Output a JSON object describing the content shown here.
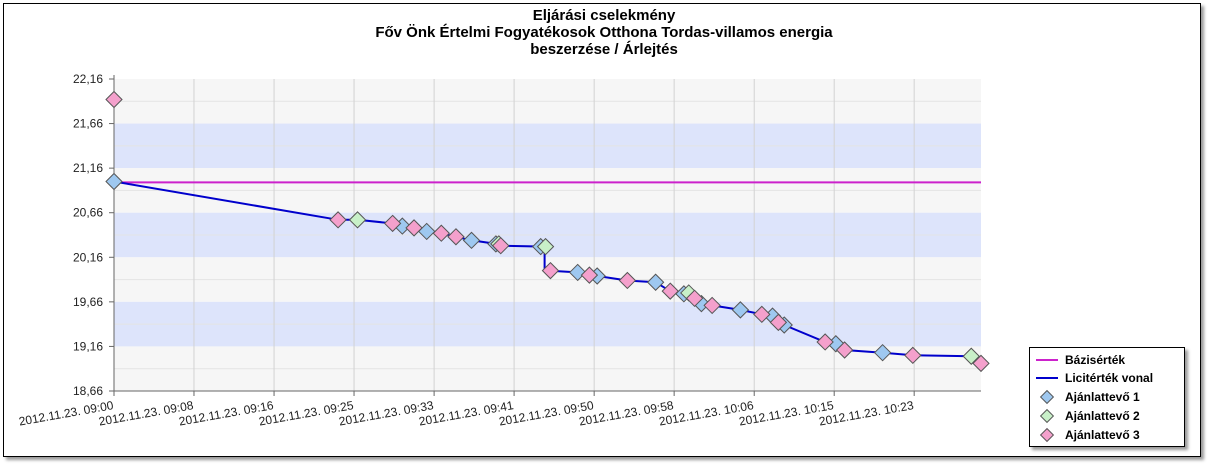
{
  "title_lines": [
    "Eljárási cselekmény",
    "Főv Önk Értelmi Fogyatékosok Otthona Tordas-villamos energia",
    "beszerzése / Árlejtés"
  ],
  "chart_data": {
    "type": "line",
    "ylim": [
      18.66,
      22.16
    ],
    "y_ticks": [
      "22,16",
      "21,66",
      "21,16",
      "20,66",
      "20,16",
      "19,66",
      "19,16",
      "18,66"
    ],
    "x_range_minutes": [
      0,
      89
    ],
    "x_ticks": [
      {
        "label": "2012.11.23. 09:00",
        "minute": 0
      },
      {
        "label": "2012.11.23. 09:08",
        "minute": 8.21
      },
      {
        "label": "2012.11.23. 09:16",
        "minute": 16.43
      },
      {
        "label": "2012.11.23. 09:25",
        "minute": 24.64
      },
      {
        "label": "2012.11.23. 09:33",
        "minute": 32.86
      },
      {
        "label": "2012.11.23. 09:41",
        "minute": 41.07
      },
      {
        "label": "2012.11.23. 09:50",
        "minute": 49.29
      },
      {
        "label": "2012.11.23. 09:58",
        "minute": 57.5
      },
      {
        "label": "2012.11.23. 10:06",
        "minute": 65.72
      },
      {
        "label": "2012.11.23. 10:15",
        "minute": 73.93
      },
      {
        "label": "2012.11.23. 10:23",
        "minute": 82.14
      }
    ],
    "base_value": 21.0,
    "series": [
      {
        "name": "Bázisérték",
        "kind": "line",
        "color": "#cc22cc"
      },
      {
        "name": "Licitérték vonal",
        "kind": "line",
        "color": "#0000cc",
        "x": [
          0.0,
          23.0,
          25.0,
          28.6,
          29.6,
          30.8,
          32.1,
          33.6,
          35.1,
          36.7,
          39.2,
          39.7,
          44.2,
          44.2,
          44.2,
          44.8,
          47.6,
          48.8,
          49.6,
          52.7,
          55.6,
          57.1,
          58.5,
          59.6,
          60.3,
          61.4,
          64.3,
          66.5,
          67.6,
          68.2,
          68.8,
          73.0,
          74.1,
          75.0,
          78.9,
          82.0,
          88.0,
          89.0
        ],
        "y": [
          21.01,
          20.58,
          20.58,
          20.54,
          20.51,
          20.49,
          20.45,
          20.43,
          20.39,
          20.35,
          20.31,
          20.29,
          20.28,
          20.28,
          20.01,
          20.01,
          19.99,
          19.96,
          19.95,
          19.9,
          19.88,
          19.78,
          19.75,
          19.7,
          19.64,
          19.62,
          19.57,
          19.52,
          19.5,
          19.43,
          19.4,
          19.21,
          19.19,
          19.12,
          19.09,
          19.06,
          19.05,
          18.97
        ]
      },
      {
        "name": "Ajánlattevő 1",
        "kind": "marker",
        "color": "#9ec8f0",
        "x": [
          0.0,
          29.6,
          32.1,
          36.7,
          39.2,
          43.8,
          47.6,
          49.6,
          55.6,
          58.5,
          60.3,
          64.3,
          67.6,
          68.8,
          74.1,
          78.9
        ],
        "y": [
          21.01,
          20.51,
          20.45,
          20.35,
          20.31,
          20.28,
          19.99,
          19.95,
          19.88,
          19.75,
          19.64,
          19.57,
          19.5,
          19.4,
          19.19,
          19.09
        ]
      },
      {
        "name": "Ajánlattevő 2",
        "kind": "marker",
        "color": "#c8f0c8",
        "x": [
          25.0,
          39.5,
          44.3,
          59.0,
          88.0
        ],
        "y": [
          20.58,
          20.31,
          20.28,
          19.76,
          19.05
        ]
      },
      {
        "name": "Ajánlattevő 3",
        "kind": "marker",
        "color": "#f4a0cc",
        "x": [
          0.0,
          23.0,
          28.6,
          30.8,
          33.6,
          35.1,
          39.7,
          44.8,
          48.8,
          52.7,
          57.1,
          59.6,
          61.4,
          66.5,
          68.2,
          73.0,
          75.0,
          82.0,
          89.0
        ],
        "y": [
          21.93,
          20.58,
          20.54,
          20.49,
          20.43,
          20.39,
          20.29,
          20.01,
          19.96,
          19.9,
          19.78,
          19.7,
          19.62,
          19.52,
          19.43,
          19.21,
          19.12,
          19.06,
          18.97
        ]
      }
    ]
  }
}
